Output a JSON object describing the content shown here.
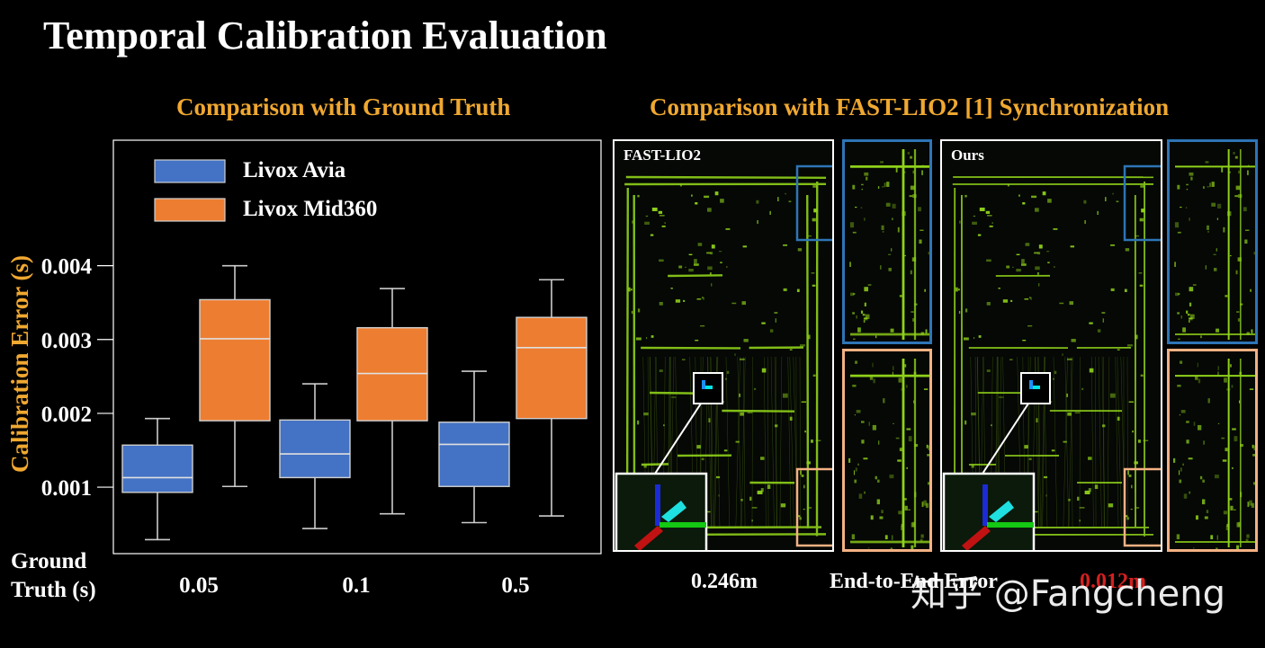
{
  "title": "Temporal Calibration Evaluation",
  "left_subtitle": "Comparison with Ground Truth",
  "right_subtitle": "Comparison with FAST-LIO2 [1] Synchronization",
  "panels": {
    "left_label": "FAST-LIO2",
    "right_label": "Ours"
  },
  "bottom": {
    "fastlio_error": "0.246m",
    "error_label": "End-to-End Error",
    "ours_error": "0.012m"
  },
  "watermark": "知乎 @Fangcheng",
  "colors": {
    "avia": "#4472c4",
    "mid360": "#ed7d31",
    "subtitle": "#f0a830",
    "zoom_top": "#2e75b6",
    "zoom_bottom": "#f4b183",
    "scan": "#8fd11a"
  },
  "chart_data": {
    "type": "box",
    "xlabel": "Ground Truth (s)",
    "ylabel": "Calibration Error (s)",
    "categories": [
      "0.05",
      "0.1",
      "0.5"
    ],
    "yticks": [
      "0.001",
      "0.002",
      "0.003",
      "0.004"
    ],
    "ylim": [
      0.0001,
      0.0057
    ],
    "legend_position": "top-left",
    "series": [
      {
        "name": "Livox Avia",
        "boxes": [
          {
            "min": 0.00029,
            "q1": 0.00093,
            "median": 0.00113,
            "q3": 0.00157,
            "max": 0.00193
          },
          {
            "min": 0.00044,
            "q1": 0.00113,
            "median": 0.00145,
            "q3": 0.00191,
            "max": 0.0024
          },
          {
            "min": 0.00052,
            "q1": 0.00101,
            "median": 0.00158,
            "q3": 0.00188,
            "max": 0.00257
          }
        ]
      },
      {
        "name": "Livox Mid360",
        "boxes": [
          {
            "min": 0.00101,
            "q1": 0.0019,
            "median": 0.00301,
            "q3": 0.00354,
            "max": 0.004
          },
          {
            "min": 0.00064,
            "q1": 0.0019,
            "median": 0.00254,
            "q3": 0.00316,
            "max": 0.00369
          },
          {
            "min": 0.00061,
            "q1": 0.00193,
            "median": 0.00289,
            "q3": 0.0033,
            "max": 0.00381
          }
        ]
      }
    ]
  }
}
